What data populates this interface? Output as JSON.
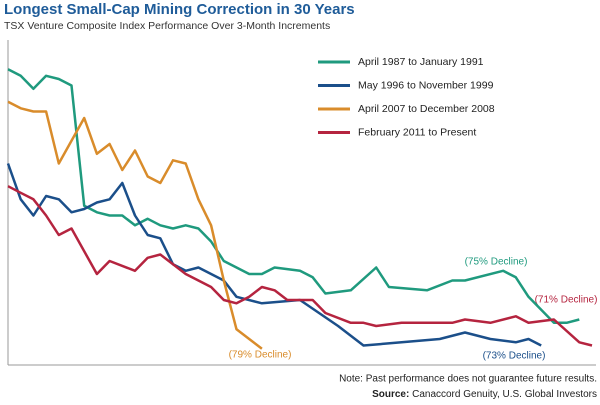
{
  "chart_data": {
    "type": "line",
    "title": "Longest Small-Cap Mining Correction in 30 Years",
    "subtitle": "TSX Venture Composite Index Performance Over 3-Month Increments",
    "xlim": [
      0,
      46
    ],
    "ylim": [
      0,
      100
    ],
    "legend": "top-right",
    "series": [
      {
        "name": "April 1987 to January 1991",
        "color": "#1f9a7e",
        "x": [
          0,
          1,
          2,
          3,
          4,
          5,
          6,
          7,
          8,
          9,
          10,
          11,
          12,
          13,
          14,
          15,
          16,
          17,
          18,
          19,
          20,
          21,
          23,
          24,
          25,
          27,
          29,
          30,
          33,
          35,
          36,
          39,
          40,
          41,
          43,
          44,
          45
        ],
        "values": [
          91,
          89,
          85,
          89,
          88,
          86,
          49,
          47,
          46,
          46,
          43,
          45,
          43,
          42,
          43,
          42,
          38,
          32,
          30,
          28,
          28,
          30,
          29,
          27,
          22,
          23,
          30,
          24,
          23,
          26,
          26,
          29,
          27,
          21,
          13,
          13,
          14
        ]
      },
      {
        "name": "May 1996 to November 1999",
        "color": "#1b4f8a",
        "x": [
          0,
          1,
          2,
          3,
          4,
          5,
          6,
          7,
          8,
          9,
          10,
          11,
          12,
          13,
          14,
          15,
          17,
          18,
          20,
          23,
          26,
          28,
          31,
          34,
          36,
          38,
          40,
          41,
          42
        ],
        "values": [
          62,
          51,
          46,
          52,
          51,
          47,
          48,
          50,
          51,
          56,
          46,
          40,
          39,
          31,
          29,
          30,
          26,
          21,
          19,
          20,
          12,
          6,
          7,
          8,
          10,
          8,
          7,
          8,
          6
        ]
      },
      {
        "name": "April 2007 to December 2008",
        "color": "#d98c2b",
        "x": [
          0,
          1,
          2,
          3,
          4,
          6,
          7,
          8,
          9,
          10,
          11,
          12,
          13,
          14,
          15,
          16,
          17,
          18,
          19,
          20
        ],
        "values": [
          81,
          79,
          78,
          78,
          62,
          76,
          65,
          68,
          60,
          66,
          58,
          56,
          63,
          62,
          51,
          43,
          26,
          11,
          8,
          5
        ]
      },
      {
        "name": "February 2011 to Present",
        "color": "#b5243f",
        "x": [
          0,
          1,
          2,
          3,
          4,
          5,
          7,
          8,
          10,
          11,
          12,
          13,
          14,
          16,
          17,
          18,
          19,
          20,
          21,
          22,
          24,
          25,
          27,
          28,
          29,
          31,
          35,
          36,
          38,
          40,
          41,
          43,
          45,
          46
        ],
        "values": [
          55,
          53,
          51,
          46,
          40,
          42,
          28,
          32,
          29,
          33,
          34,
          31,
          28,
          24,
          20,
          19,
          21,
          24,
          23,
          20,
          20,
          16,
          13,
          13,
          12,
          13,
          13,
          14,
          13,
          15,
          13,
          14,
          7,
          6
        ]
      }
    ],
    "annotations": [
      "(75% Decline)",
      "(73% Decline)",
      "(79% Decline)",
      "(71% Decline)"
    ],
    "note": "Note: Past performance does not guarantee future results.",
    "source_label": "Source:",
    "source": "Canaccord Genuity, U.S. Global Investors"
  }
}
